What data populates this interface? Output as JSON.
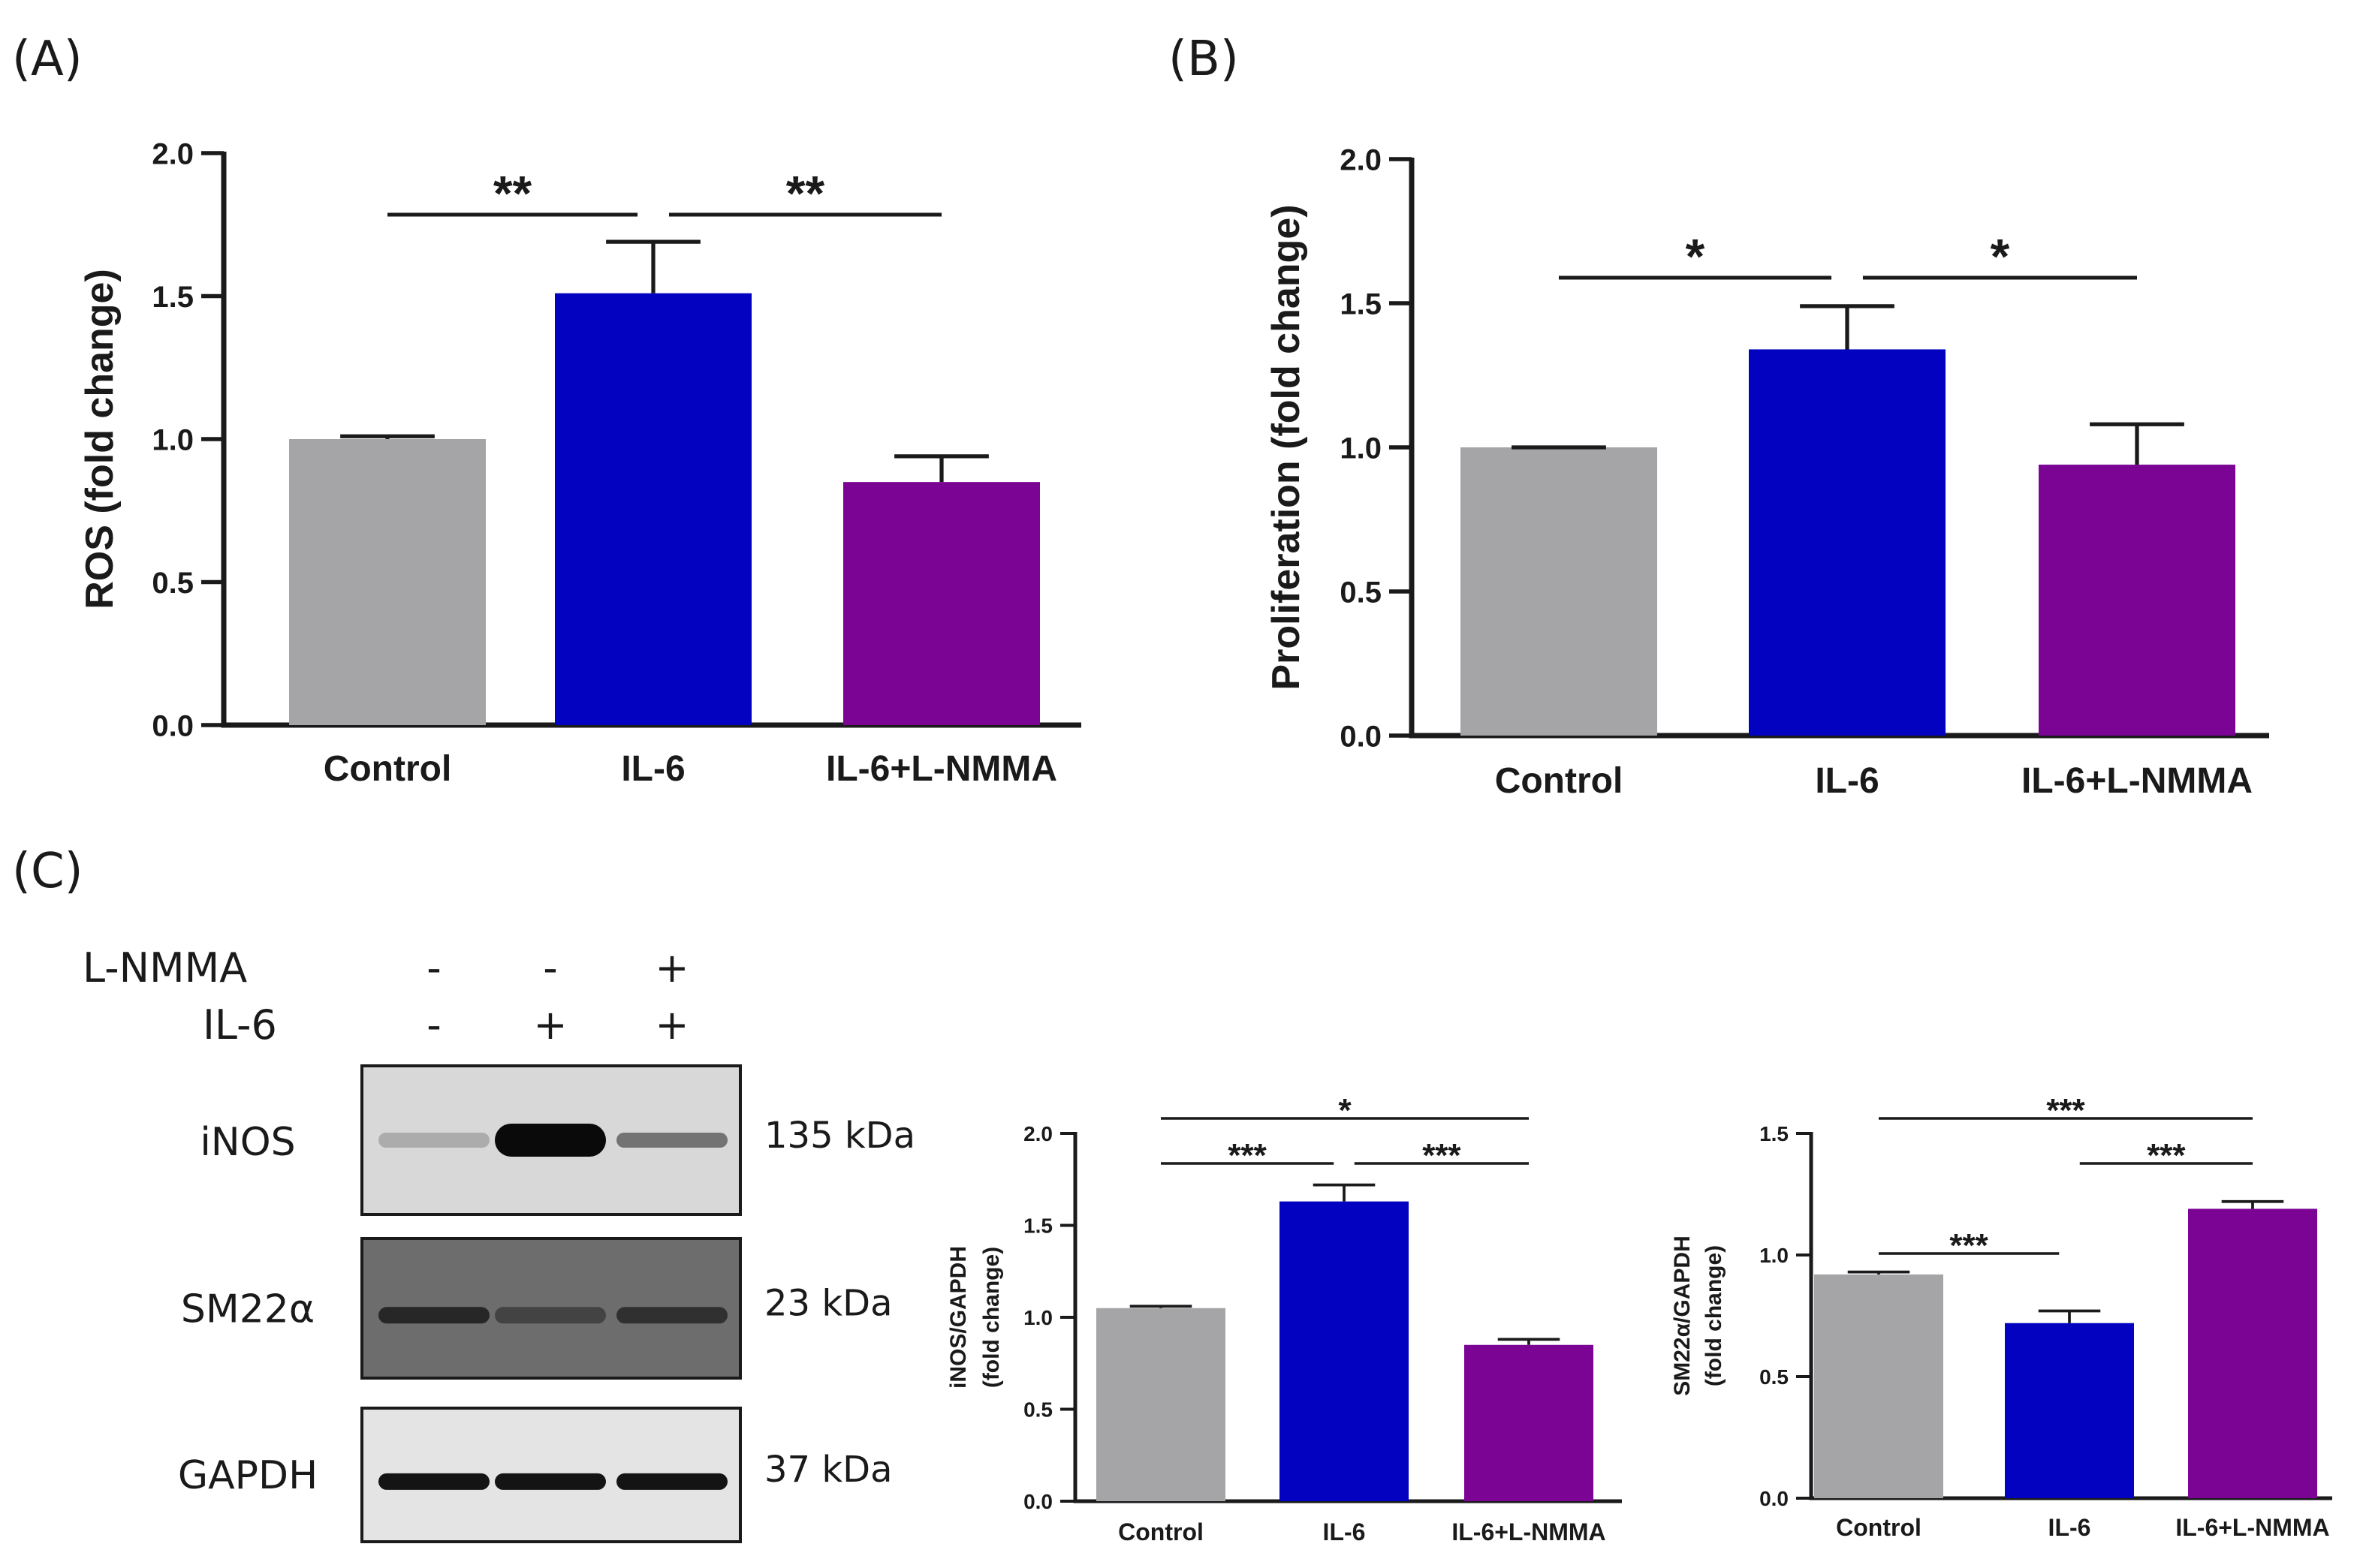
{
  "panels": [
    {
      "label": "(A)"
    },
    {
      "label": "(B)"
    },
    {
      "label": "(C)"
    }
  ],
  "colors": {
    "Control": "#a5a5a7",
    "IL-6": "#0202c0",
    "IL-6+L-NMMA": "#7b0495",
    "axis": "#1a1a1a"
  },
  "western_blot": {
    "treatments": [
      {
        "name": "L-NMMA",
        "marks": [
          "-",
          "-",
          "+"
        ]
      },
      {
        "name": "IL-6",
        "marks": [
          "-",
          "+",
          "+"
        ]
      }
    ],
    "bands": [
      {
        "protein": "iNOS",
        "size": "135 kDa",
        "intensity": [
          0.15,
          1.0,
          0.45
        ]
      },
      {
        "protein": "SM22α",
        "size": "23 kDa",
        "intensity": [
          0.85,
          0.7,
          0.8
        ]
      },
      {
        "protein": "GAPDH",
        "size": "37 kDa",
        "intensity": [
          0.95,
          0.95,
          0.95
        ]
      }
    ]
  },
  "chart_data": [
    {
      "type": "bar",
      "categories": [
        "Control",
        "IL-6",
        "IL-6+L-NMMA"
      ],
      "values": [
        1.0,
        1.51,
        0.85
      ],
      "errors": [
        0.01,
        0.18,
        0.09
      ],
      "ylabel": "ROS (fold change)",
      "ylim": [
        0,
        2.0
      ],
      "yticks": [
        "0.0",
        "0.5",
        "1.0",
        "1.5",
        "2.0"
      ],
      "significance": [
        {
          "from": "Control",
          "to": "IL-6",
          "label": "**"
        },
        {
          "from": "IL-6",
          "to": "IL-6+L-NMMA",
          "label": "**"
        }
      ]
    },
    {
      "type": "bar",
      "categories": [
        "Control",
        "IL-6",
        "IL-6+L-NMMA"
      ],
      "values": [
        1.0,
        1.34,
        0.94
      ],
      "errors": [
        0.0,
        0.15,
        0.14
      ],
      "ylabel": "Proliferation (fold change)",
      "ylim": [
        0,
        2.0
      ],
      "yticks": [
        "0.0",
        "0.5",
        "1.0",
        "1.5",
        "2.0"
      ],
      "significance": [
        {
          "from": "Control",
          "to": "IL-6",
          "label": "*"
        },
        {
          "from": "IL-6",
          "to": "IL-6+L-NMMA",
          "label": "*"
        }
      ]
    },
    {
      "type": "bar",
      "categories": [
        "Control",
        "IL-6",
        "IL-6+L-NMMA"
      ],
      "values": [
        1.05,
        1.63,
        0.85
      ],
      "errors": [
        0.01,
        0.09,
        0.03
      ],
      "ylabel": "iNOS/GAPDH",
      "ylabel2": "(fold change)",
      "ylim": [
        0,
        2.0
      ],
      "yticks": [
        "0.0",
        "0.5",
        "1.0",
        "1.5",
        "2.0"
      ],
      "significance": [
        {
          "from": "Control",
          "to": "IL-6",
          "label": "***"
        },
        {
          "from": "IL-6",
          "to": "IL-6+L-NMMA",
          "label": "***"
        },
        {
          "from": "Control",
          "to": "IL-6+L-NMMA",
          "label": "*"
        }
      ]
    },
    {
      "type": "bar",
      "categories": [
        "Control",
        "IL-6",
        "IL-6+L-NMMA"
      ],
      "values": [
        0.92,
        0.72,
        1.19
      ],
      "errors": [
        0.01,
        0.05,
        0.03
      ],
      "ylabel": "SM22α/GAPDH",
      "ylabel2": "(fold change)",
      "ylim": [
        0,
        1.5
      ],
      "yticks": [
        "0.0",
        "0.5",
        "1.0",
        "1.5"
      ],
      "significance": [
        {
          "from": "Control",
          "to": "IL-6",
          "label": "***"
        },
        {
          "from": "IL-6",
          "to": "IL-6+L-NMMA",
          "label": "***"
        },
        {
          "from": "Control",
          "to": "IL-6+L-NMMA",
          "label": "***"
        }
      ]
    }
  ]
}
